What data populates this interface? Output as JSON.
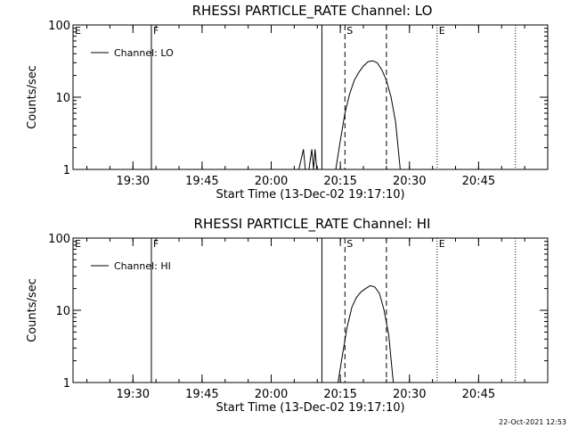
{
  "timestamp": "22-Oct-2021 12:53",
  "chart_data": [
    {
      "type": "line",
      "title": "RHESSI PARTICLE_RATE Channel: LO",
      "xlabel": "Start Time (13-Dec-02 19:17:10)",
      "ylabel": "Counts/sec",
      "yscale": "log",
      "ylim": [
        1,
        100
      ],
      "yticks": [
        1,
        10,
        100
      ],
      "ytick_labels": [
        "1",
        "10",
        "100"
      ],
      "xlim": [
        "19:17",
        "21:00"
      ],
      "xticks": [
        "19:30",
        "19:45",
        "20:00",
        "20:15",
        "20:30",
        "20:45"
      ],
      "minor_xtick_step_min": 5,
      "legend": {
        "label": "Channel: LO",
        "position": "top-left"
      },
      "series": [
        {
          "name": "Channel: LO",
          "segments": [
            [
              [
                "20:06",
                1.0
              ],
              [
                "20:07",
                1.9
              ],
              [
                "20:07.4",
                1.0
              ]
            ],
            [
              [
                "20:08.2",
                1.0
              ],
              [
                "20:08.8",
                1.9
              ],
              [
                "20:09.2",
                1.0
              ],
              [
                "20:09.5",
                1.9
              ],
              [
                "20:09.9",
                1.0
              ]
            ],
            [
              [
                "20:14",
                1.0
              ],
              [
                "20:15",
                2.5
              ],
              [
                "20:16",
                6.0
              ],
              [
                "20:17",
                11.0
              ],
              [
                "20:18",
                17.0
              ],
              [
                "20:19",
                22.0
              ],
              [
                "20:20",
                27.0
              ],
              [
                "20:21",
                31.0
              ],
              [
                "20:22",
                32.0
              ],
              [
                "20:23",
                30.0
              ],
              [
                "20:24",
                24.0
              ],
              [
                "20:25",
                17.0
              ],
              [
                "20:26",
                10.0
              ],
              [
                "20:27",
                4.5
              ],
              [
                "20:28",
                1.0
              ]
            ]
          ]
        }
      ],
      "vlines": [
        {
          "label": "F",
          "time": "19:34",
          "style": "solid"
        },
        {
          "label": "",
          "time": "20:11",
          "style": "solid"
        },
        {
          "label": "S",
          "time": "20:16",
          "style": "dashed"
        },
        {
          "label": "",
          "time": "20:25",
          "style": "dashed"
        },
        {
          "label": "E",
          "time": "20:36",
          "style": "dotted"
        },
        {
          "label": "",
          "time": "20:53",
          "style": "dotted"
        }
      ],
      "left_marker_label": "E"
    },
    {
      "type": "line",
      "title": "RHESSI PARTICLE_RATE Channel: HI",
      "xlabel": "Start Time (13-Dec-02 19:17:10)",
      "ylabel": "Counts/sec",
      "yscale": "log",
      "ylim": [
        1,
        100
      ],
      "yticks": [
        1,
        10,
        100
      ],
      "ytick_labels": [
        "1",
        "10",
        "100"
      ],
      "xlim": [
        "19:17",
        "21:00"
      ],
      "xticks": [
        "19:30",
        "19:45",
        "20:00",
        "20:15",
        "20:30",
        "20:45"
      ],
      "minor_xtick_step_min": 5,
      "legend": {
        "label": "Channel: HI",
        "position": "top-left"
      },
      "series": [
        {
          "name": "Channel: HI",
          "segments": [
            [
              [
                "20:14.5",
                1.0
              ],
              [
                "20:15.5",
                2.5
              ],
              [
                "20:16.5",
                6.0
              ],
              [
                "20:17.5",
                11.0
              ],
              [
                "20:18.5",
                15.0
              ],
              [
                "20:19.5",
                18.0
              ],
              [
                "20:20.5",
                20.0
              ],
              [
                "20:21.5",
                22.0
              ],
              [
                "20:22.5",
                21.0
              ],
              [
                "20:23.5",
                17.0
              ],
              [
                "20:24.5",
                10.0
              ],
              [
                "20:25.5",
                4.5
              ],
              [
                "20:26.5",
                1.0
              ]
            ]
          ]
        }
      ],
      "vlines": [
        {
          "label": "F",
          "time": "19:34",
          "style": "solid"
        },
        {
          "label": "",
          "time": "20:11",
          "style": "solid"
        },
        {
          "label": "S",
          "time": "20:16",
          "style": "dashed"
        },
        {
          "label": "",
          "time": "20:25",
          "style": "dashed"
        },
        {
          "label": "E",
          "time": "20:36",
          "style": "dotted"
        },
        {
          "label": "",
          "time": "20:53",
          "style": "dotted"
        }
      ],
      "left_marker_label": "E"
    }
  ]
}
